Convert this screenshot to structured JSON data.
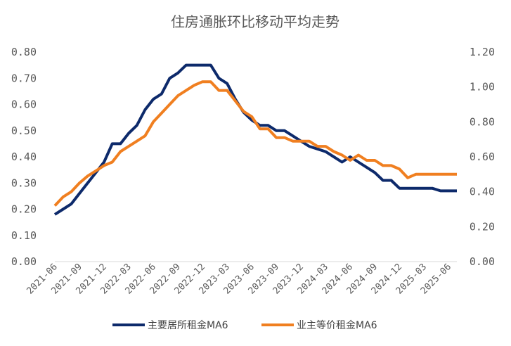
{
  "chart_data": {
    "type": "line",
    "title": "住房通胀环比移动平均走势",
    "x": [
      "2021-06",
      "2021-07",
      "2021-08",
      "2021-09",
      "2021-10",
      "2021-11",
      "2021-12",
      "2022-01",
      "2022-02",
      "2022-03",
      "2022-04",
      "2022-05",
      "2022-06",
      "2022-07",
      "2022-08",
      "2022-09",
      "2022-10",
      "2022-11",
      "2022-12",
      "2023-01",
      "2023-02",
      "2023-03",
      "2023-04",
      "2023-05",
      "2023-06",
      "2023-07",
      "2023-08",
      "2023-09",
      "2023-10",
      "2023-11",
      "2023-12",
      "2024-01",
      "2024-02",
      "2024-03",
      "2024-04",
      "2024-05",
      "2024-06",
      "2024-07",
      "2024-08",
      "2024-09",
      "2024-10",
      "2024-11",
      "2024-12",
      "2025-01",
      "2025-02",
      "2025-03",
      "2025-04",
      "2025-05",
      "2025-06",
      "2025-07"
    ],
    "x_tick_labels": [
      "2021-06",
      "2021-09",
      "2021-12",
      "2022-03",
      "2022-06",
      "2022-09",
      "2022-12",
      "2023-03",
      "2023-06",
      "2023-09",
      "2023-12",
      "2024-03",
      "2024-06",
      "2024-09",
      "2024-12",
      "2025-03",
      "2025-06"
    ],
    "y_left": {
      "ylim": [
        0,
        0.8
      ],
      "ticks": [
        "0.00",
        "0.10",
        "0.20",
        "0.30",
        "0.40",
        "0.50",
        "0.60",
        "0.70",
        "0.80"
      ]
    },
    "y_right": {
      "ylim": [
        0,
        1.2
      ],
      "ticks": [
        "0.00",
        "0.20",
        "0.40",
        "0.60",
        "0.80",
        "1.00",
        "1.20"
      ]
    },
    "series": [
      {
        "name": "主要居所租金MA6",
        "axis": "left",
        "color": "#0d2a6b",
        "values": [
          0.18,
          0.2,
          0.22,
          0.26,
          0.3,
          0.34,
          0.38,
          0.45,
          0.45,
          0.49,
          0.52,
          0.58,
          0.62,
          0.64,
          0.7,
          0.72,
          0.75,
          0.75,
          0.75,
          0.75,
          0.7,
          0.68,
          0.62,
          0.57,
          0.54,
          0.52,
          0.52,
          0.5,
          0.5,
          0.48,
          0.46,
          0.44,
          0.43,
          0.42,
          0.4,
          0.38,
          0.4,
          0.38,
          0.36,
          0.34,
          0.31,
          0.31,
          0.28,
          0.28,
          0.28,
          0.28,
          0.28,
          0.27,
          0.27,
          0.27
        ]
      },
      {
        "name": "业主等价租金MA6",
        "axis": "right",
        "color": "#f07f20",
        "values": [
          0.32,
          0.37,
          0.4,
          0.45,
          0.49,
          0.52,
          0.55,
          0.57,
          0.63,
          0.66,
          0.69,
          0.72,
          0.8,
          0.85,
          0.9,
          0.95,
          0.98,
          1.01,
          1.03,
          1.03,
          0.98,
          0.98,
          0.92,
          0.86,
          0.83,
          0.76,
          0.76,
          0.71,
          0.71,
          0.69,
          0.69,
          0.69,
          0.66,
          0.66,
          0.63,
          0.61,
          0.58,
          0.61,
          0.58,
          0.58,
          0.55,
          0.55,
          0.53,
          0.48,
          0.5,
          0.5,
          0.5,
          0.5,
          0.5,
          0.5
        ]
      }
    ],
    "legend_position": "bottom",
    "grid": false
  }
}
